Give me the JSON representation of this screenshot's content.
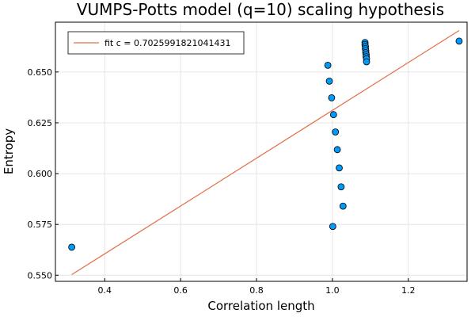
{
  "chart_data": {
    "type": "scatter",
    "title": "VUMPS-Potts model (q=10) scaling hypothesis",
    "xlabel": "Correlation length",
    "ylabel": "Entropy",
    "xlim": [
      0.27,
      1.355
    ],
    "ylim": [
      0.547,
      0.6745
    ],
    "xticks": [
      0.4,
      0.6,
      0.8,
      1.0,
      1.2
    ],
    "xtick_labels": [
      "0.4",
      "0.6",
      "0.8",
      "1.0",
      "1.2"
    ],
    "yticks": [
      0.55,
      0.575,
      0.6,
      0.625,
      0.65
    ],
    "ytick_labels": [
      "0.550",
      "0.575",
      "0.600",
      "0.625",
      "0.650"
    ],
    "grid": true,
    "legend_position": "top-left",
    "points": {
      "color": "#009af9",
      "x": [
        0.313,
        0.988,
        0.992,
        0.998,
        1.003,
        1.008,
        1.013,
        1.018,
        1.023,
        1.028,
        1.001,
        1.086,
        1.086,
        1.087,
        1.087,
        1.088,
        1.088,
        1.089,
        1.089,
        1.09,
        1.09,
        1.334
      ],
      "y": [
        0.5638,
        0.6533,
        0.6455,
        0.6373,
        0.629,
        0.6205,
        0.6118,
        0.6028,
        0.5935,
        0.584,
        0.574,
        0.6645,
        0.6635,
        0.6625,
        0.6615,
        0.6605,
        0.6595,
        0.6585,
        0.6575,
        0.6565,
        0.655,
        0.6652
      ]
    },
    "fit_line": {
      "name": "fit c = 0.7025991821041431",
      "color": "#e26f46",
      "x": [
        0.313,
        1.334
      ],
      "y": [
        0.5503,
        0.6704
      ]
    }
  }
}
